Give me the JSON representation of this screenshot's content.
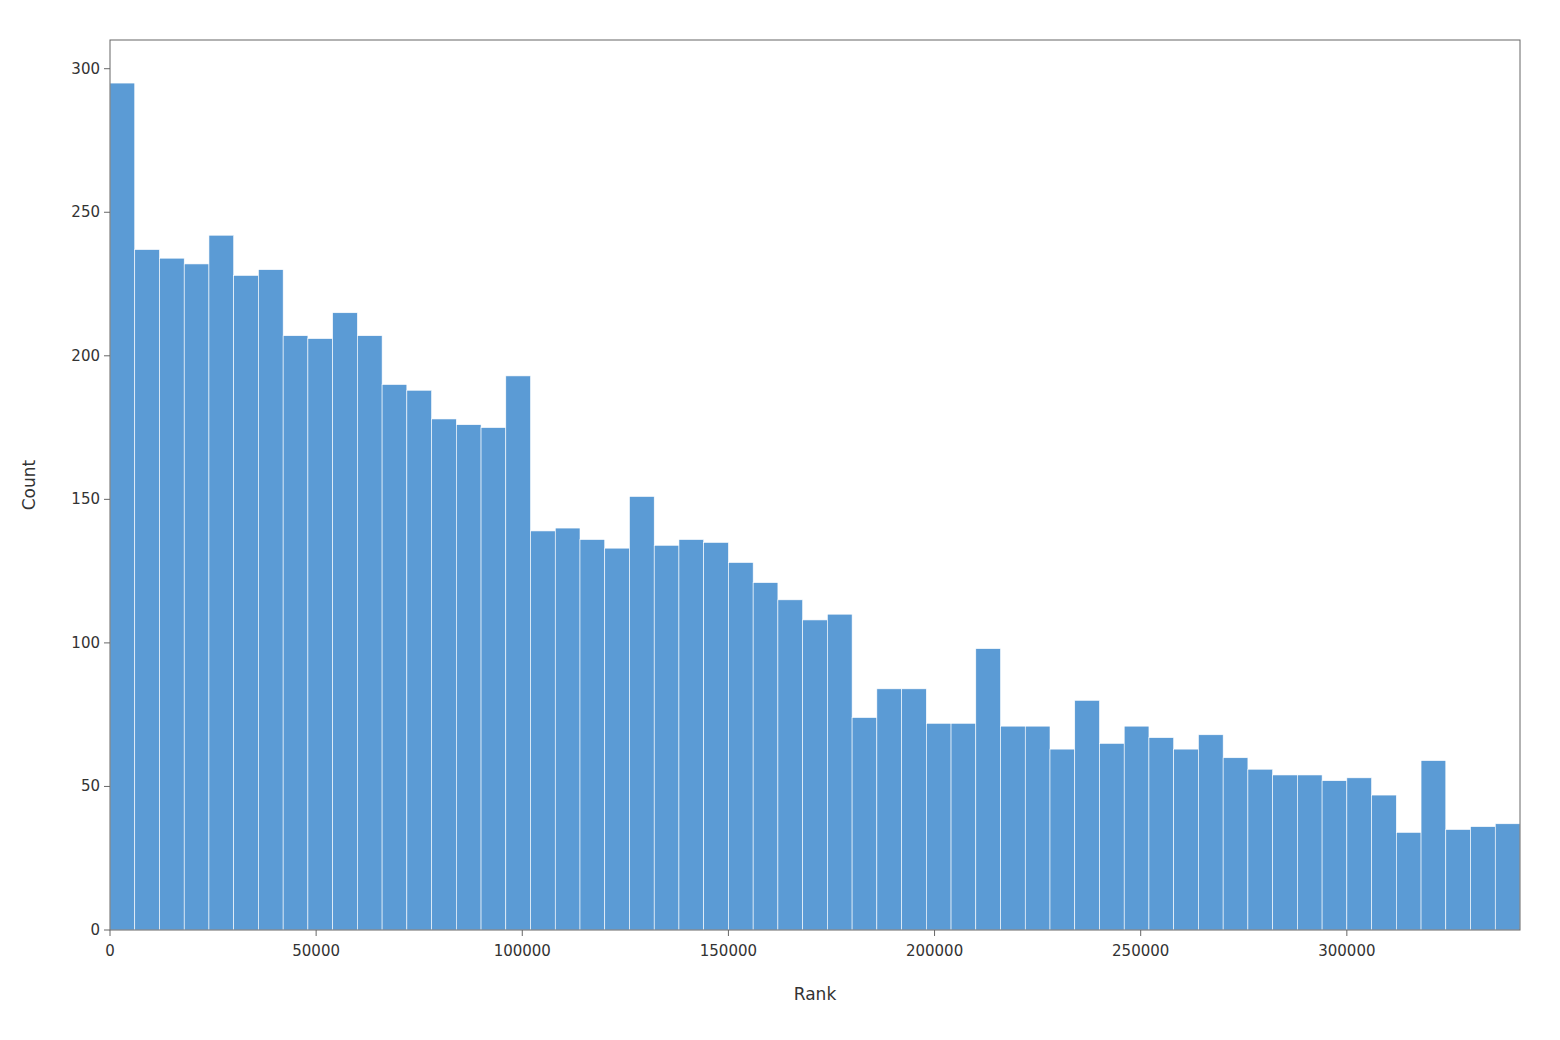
{
  "chart_data": {
    "type": "histogram",
    "bins": [
      0,
      6000,
      12000,
      18000,
      24000,
      30000,
      36000,
      42000,
      48000,
      54000,
      60000,
      66000,
      72000,
      78000,
      84000,
      90000,
      96000,
      102000,
      108000,
      114000,
      120000,
      126000,
      132000,
      138000,
      144000,
      150000,
      156000,
      162000,
      168000,
      174000,
      180000,
      186000,
      192000,
      198000,
      204000,
      210000,
      216000,
      222000,
      228000,
      234000,
      240000,
      246000,
      252000,
      258000,
      264000,
      270000,
      276000,
      282000,
      288000,
      294000,
      300000,
      306000,
      312000,
      318000,
      324000,
      330000,
      336000,
      342000
    ],
    "values": [
      295,
      237,
      234,
      232,
      242,
      228,
      230,
      207,
      206,
      215,
      207,
      190,
      188,
      178,
      176,
      175,
      193,
      139,
      140,
      136,
      133,
      151,
      134,
      136,
      135,
      128,
      121,
      115,
      108,
      110,
      74,
      84,
      84,
      72,
      72,
      98,
      71,
      71,
      63,
      80,
      65,
      71,
      67,
      63,
      68,
      60,
      56,
      54,
      54,
      52,
      53,
      47,
      34,
      59,
      35,
      36,
      37
    ],
    "color": "#5b9bd5",
    "x_label": "Rank",
    "y_label": "Count",
    "xlim": [
      0,
      342000
    ],
    "ylim": [
      0,
      310
    ],
    "xticks": [
      0,
      50000,
      100000,
      150000,
      200000,
      250000,
      300000
    ],
    "yticks": [
      0,
      50,
      100,
      150,
      200,
      250,
      300
    ],
    "grid": false
  }
}
